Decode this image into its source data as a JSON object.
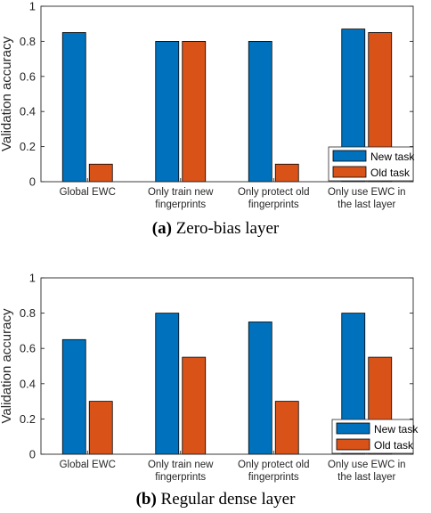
{
  "chart_data": [
    {
      "type": "bar",
      "caption_tag": "(a)",
      "caption_text": "Zero-bias layer",
      "ylabel": "Validation accuracy",
      "ylim": [
        0,
        1
      ],
      "yticks": [
        "0",
        "0.2",
        "0.4",
        "0.6",
        "0.8",
        "1"
      ],
      "categories": [
        [
          "Global EWC"
        ],
        [
          "Only train new",
          "fingerprints"
        ],
        [
          "Only protect old",
          "fingerprints"
        ],
        [
          "Only use EWC in",
          "the last layer"
        ]
      ],
      "series": [
        {
          "name": "New task",
          "color": "#0072BD",
          "values": [
            0.85,
            0.8,
            0.8,
            0.87
          ]
        },
        {
          "name": "Old task",
          "color": "#D95319",
          "values": [
            0.1,
            0.8,
            0.1,
            0.85
          ]
        }
      ],
      "legend_position": "bottom-right",
      "grid": false
    },
    {
      "type": "bar",
      "caption_tag": "(b)",
      "caption_text": "Regular dense layer",
      "ylabel": "Validation accuracy",
      "ylim": [
        0,
        1
      ],
      "yticks": [
        "0",
        "0.2",
        "0.4",
        "0.6",
        "0.8",
        "1"
      ],
      "categories": [
        [
          "Global EWC"
        ],
        [
          "Only train new",
          "fingerprints"
        ],
        [
          "Only protect old",
          "fingerprints"
        ],
        [
          "Only use EWC in",
          "the last layer"
        ]
      ],
      "series": [
        {
          "name": "New task",
          "color": "#0072BD",
          "values": [
            0.65,
            0.8,
            0.75,
            0.8
          ]
        },
        {
          "name": "Old task",
          "color": "#D95319",
          "values": [
            0.3,
            0.55,
            0.3,
            0.55
          ]
        }
      ],
      "legend_position": "bottom-right",
      "grid": false
    }
  ]
}
